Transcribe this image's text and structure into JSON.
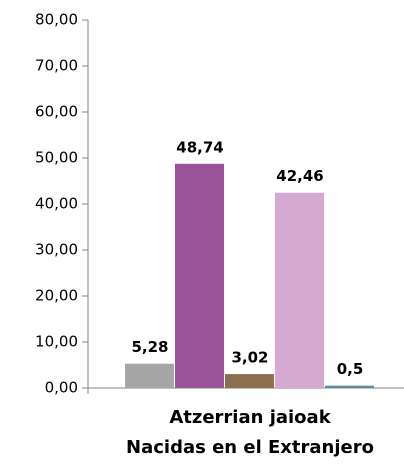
{
  "chart_data": {
    "type": "bar",
    "categories": [
      [
        "Atzerrian jaioak",
        "Nacidas en el Extranjero"
      ]
    ],
    "series": [
      {
        "color": "#a6a6a6",
        "values": [
          5.28
        ],
        "value_labels": [
          "5,28"
        ]
      },
      {
        "color": "#9b5499",
        "values": [
          48.74
        ],
        "value_labels": [
          "48,74"
        ]
      },
      {
        "color": "#8b6f4e",
        "values": [
          3.02
        ],
        "value_labels": [
          "3,02"
        ]
      },
      {
        "color": "#d5a9d2",
        "values": [
          42.46
        ],
        "value_labels": [
          "42,46"
        ]
      },
      {
        "color": "#5f8a9c",
        "values": [
          0.5
        ],
        "value_labels": [
          "0,5"
        ]
      }
    ],
    "ylim": [
      0,
      80
    ],
    "yticks": [
      {
        "value": 0,
        "label": "0,00"
      },
      {
        "value": 10,
        "label": "10,00"
      },
      {
        "value": 20,
        "label": "20,00"
      },
      {
        "value": 30,
        "label": "30,00"
      },
      {
        "value": 40,
        "label": "40,00"
      },
      {
        "value": 50,
        "label": "50,00"
      },
      {
        "value": 60,
        "label": "60,00"
      },
      {
        "value": 70,
        "label": "70,00"
      },
      {
        "value": 80,
        "label": "80,00"
      }
    ],
    "grid": false
  }
}
